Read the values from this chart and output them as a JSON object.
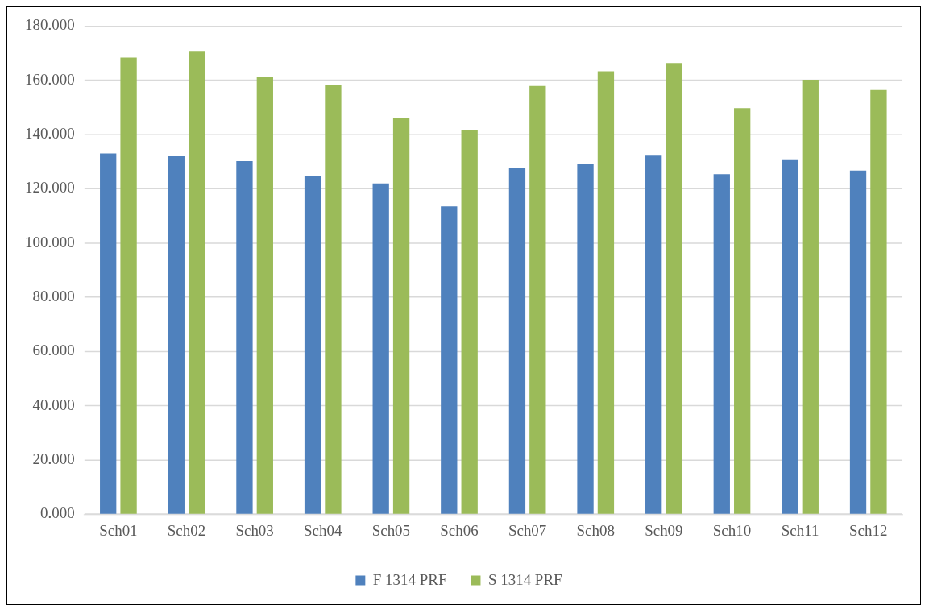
{
  "chart_data": {
    "type": "bar",
    "categories": [
      "Sch01",
      "Sch02",
      "Sch03",
      "Sch04",
      "Sch05",
      "Sch06",
      "Sch07",
      "Sch08",
      "Sch09",
      "Sch10",
      "Sch11",
      "Sch12"
    ],
    "series": [
      {
        "name": "F 1314 PRF",
        "color": "#4f81bd",
        "values": [
          133,
          132,
          130.2,
          124.8,
          122,
          113.5,
          127.7,
          129.3,
          132.2,
          125.4,
          130.6,
          126.7
        ]
      },
      {
        "name": "S 1314 PRF",
        "color": "#9bbb59",
        "values": [
          168.4,
          170.8,
          161.2,
          158.1,
          146,
          141.7,
          157.9,
          163.3,
          166.4,
          149.7,
          160.2,
          156.4
        ]
      }
    ],
    "ylim": [
      0,
      180
    ],
    "yticks": [
      {
        "value": 0,
        "label": "0.000"
      },
      {
        "value": 20,
        "label": "20.000"
      },
      {
        "value": 40,
        "label": "40.000"
      },
      {
        "value": 60,
        "label": "60.000"
      },
      {
        "value": 80,
        "label": "80.000"
      },
      {
        "value": 100,
        "label": "100.000"
      },
      {
        "value": 120,
        "label": "120.000"
      },
      {
        "value": 140,
        "label": "140.000"
      },
      {
        "value": 160,
        "label": "160.000"
      },
      {
        "value": 180,
        "label": "180.000"
      }
    ],
    "grid": "y",
    "legend": "bottom"
  }
}
